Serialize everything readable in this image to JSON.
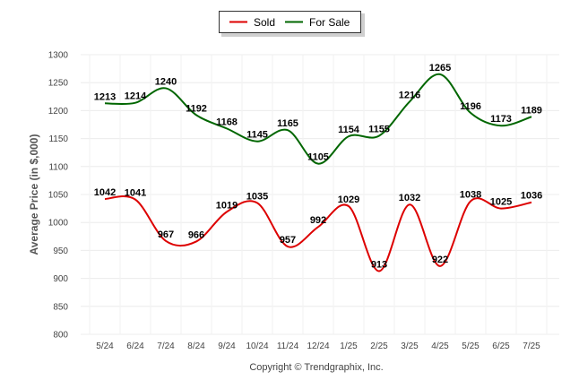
{
  "chart_data": {
    "type": "line",
    "categories": [
      "5/24",
      "6/24",
      "7/24",
      "8/24",
      "9/24",
      "10/24",
      "11/24",
      "12/24",
      "1/25",
      "2/25",
      "3/25",
      "4/25",
      "5/25",
      "6/25",
      "7/25"
    ],
    "series": [
      {
        "name": "Sold",
        "color": "#dd0000",
        "values": [
          1042,
          1041,
          967,
          966,
          1019,
          1035,
          957,
          992,
          1029,
          913,
          1032,
          922,
          1038,
          1025,
          1036
        ]
      },
      {
        "name": "For Sale",
        "color": "#006600",
        "values": [
          1213,
          1214,
          1240,
          1192,
          1168,
          1145,
          1165,
          1105,
          1154,
          1155,
          1216,
          1265,
          1196,
          1173,
          1189
        ]
      }
    ],
    "ylabel": "Average Price (in $,000)",
    "ylim": [
      800,
      1300
    ],
    "yticks": [
      800,
      850,
      900,
      950,
      1000,
      1050,
      1100,
      1150,
      1200,
      1250,
      1300
    ],
    "grid": true,
    "legend_position": "top-center"
  },
  "footer": "Copyright © Trendgraphix, Inc."
}
